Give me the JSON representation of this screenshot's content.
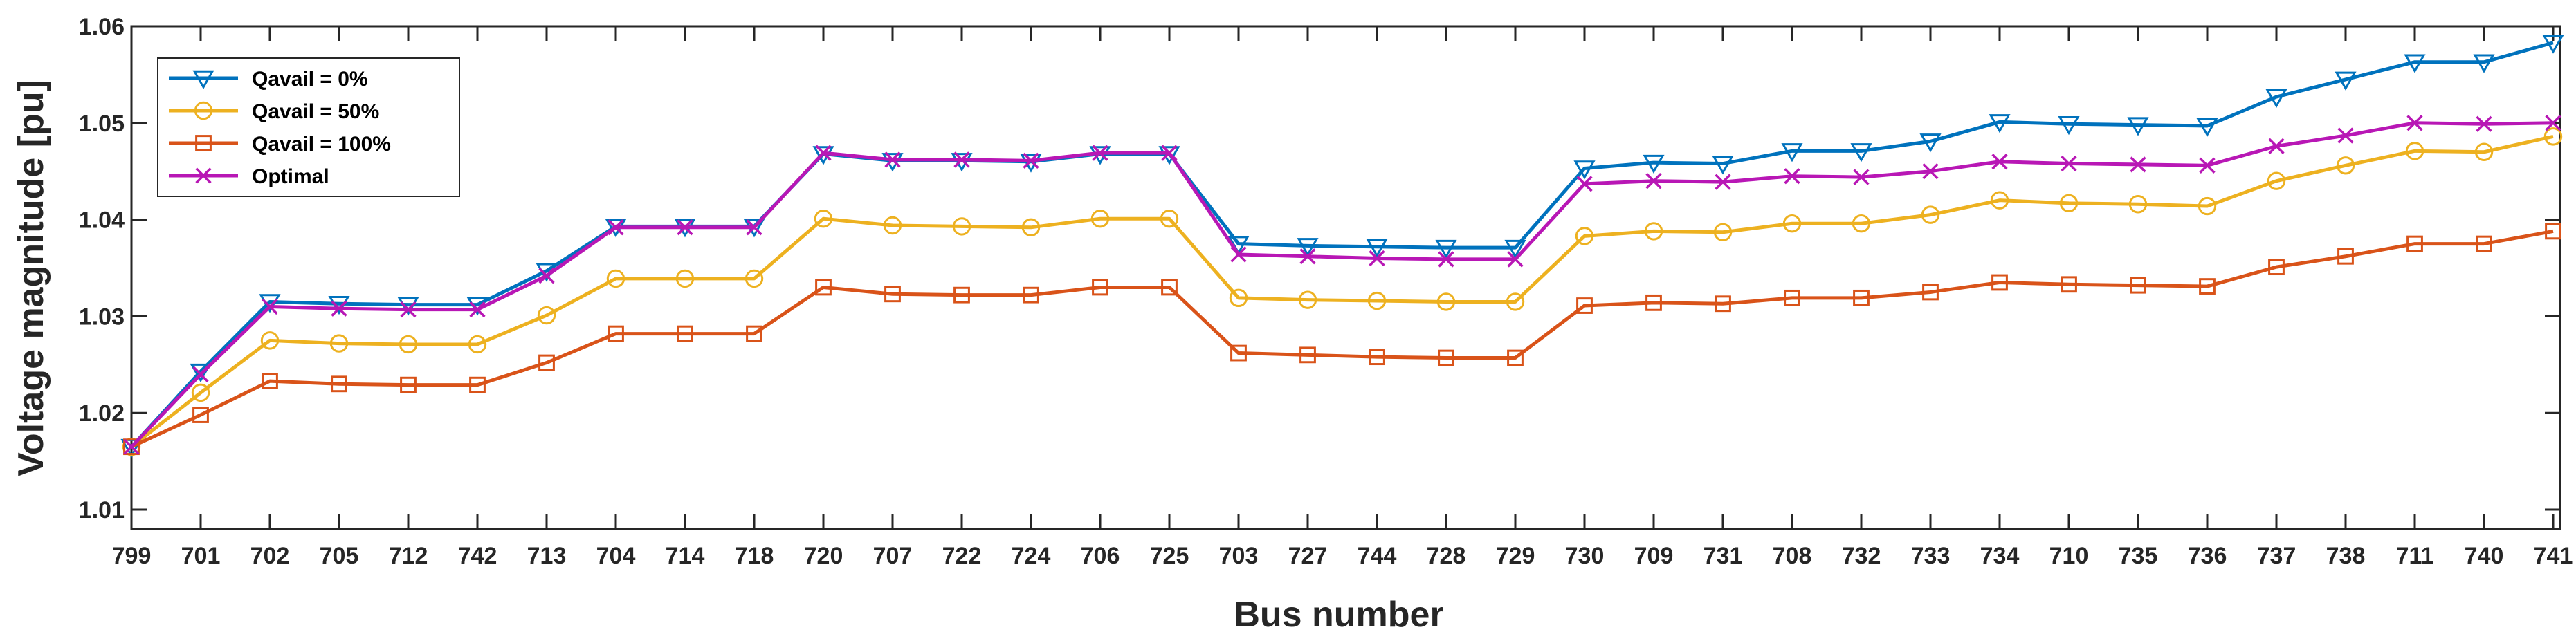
{
  "chart_data": {
    "type": "line",
    "xlabel": "Bus number",
    "ylabel": "Voltage magnitude [pu]",
    "ylim": [
      1.008,
      1.06
    ],
    "yticks": [
      1.01,
      1.02,
      1.03,
      1.04,
      1.05,
      1.06
    ],
    "ytick_labels": [
      "1.01",
      "1.02",
      "1.03",
      "1.04",
      "1.05",
      "1.06"
    ],
    "grid": false,
    "legend_position": "top-left",
    "categories": [
      "799",
      "701",
      "702",
      "705",
      "712",
      "742",
      "713",
      "704",
      "714",
      "718",
      "720",
      "707",
      "722",
      "724",
      "706",
      "725",
      "703",
      "727",
      "744",
      "728",
      "729",
      "730",
      "709",
      "731",
      "708",
      "732",
      "733",
      "734",
      "710",
      "735",
      "736",
      "737",
      "738",
      "711",
      "740",
      "741"
    ],
    "series": [
      {
        "name": "Qavail = 0%",
        "color": "#0072BD",
        "marker": "triangle-down",
        "values": [
          1.0165,
          1.0243,
          1.0315,
          1.0313,
          1.0312,
          1.0312,
          1.0347,
          1.0393,
          1.0393,
          1.0393,
          1.0468,
          1.0461,
          1.0461,
          1.046,
          1.0468,
          1.0468,
          1.0375,
          1.0373,
          1.0372,
          1.0371,
          1.0371,
          1.0453,
          1.0459,
          1.0458,
          1.0471,
          1.0471,
          1.0481,
          1.0501,
          1.0499,
          1.0498,
          1.0497,
          1.0527,
          1.0545,
          1.0563,
          1.0563,
          1.0583
        ]
      },
      {
        "name": "Qavail = 50%",
        "color": "#EDB120",
        "marker": "circle",
        "values": [
          1.0165,
          1.0221,
          1.0275,
          1.0272,
          1.0271,
          1.0271,
          1.0301,
          1.0339,
          1.0339,
          1.0339,
          1.0401,
          1.0394,
          1.0393,
          1.0392,
          1.0401,
          1.0401,
          1.0319,
          1.0317,
          1.0316,
          1.0315,
          1.0315,
          1.0383,
          1.0388,
          1.0387,
          1.0396,
          1.0396,
          1.0405,
          1.042,
          1.0417,
          1.0416,
          1.0414,
          1.044,
          1.0456,
          1.0471,
          1.047,
          1.0486
        ]
      },
      {
        "name": "Qavail = 100%",
        "color": "#D95319",
        "marker": "square",
        "values": [
          1.0165,
          1.0198,
          1.0233,
          1.023,
          1.0229,
          1.0229,
          1.0252,
          1.0282,
          1.0282,
          1.0282,
          1.033,
          1.0323,
          1.0322,
          1.0322,
          1.033,
          1.033,
          1.0262,
          1.026,
          1.0258,
          1.0257,
          1.0257,
          1.0311,
          1.0314,
          1.0313,
          1.0319,
          1.0319,
          1.0325,
          1.0335,
          1.0333,
          1.0332,
          1.0331,
          1.0351,
          1.0362,
          1.0375,
          1.0375,
          1.0388
        ]
      },
      {
        "name": "Optimal",
        "color": "#B817B5",
        "marker": "x",
        "values": [
          1.0165,
          1.024,
          1.031,
          1.0308,
          1.0307,
          1.0307,
          1.0342,
          1.0392,
          1.0392,
          1.0392,
          1.0469,
          1.0462,
          1.0462,
          1.0461,
          1.0469,
          1.0469,
          1.0364,
          1.0362,
          1.036,
          1.0359,
          1.0359,
          1.0437,
          1.044,
          1.0439,
          1.0445,
          1.0444,
          1.045,
          1.046,
          1.0458,
          1.0457,
          1.0456,
          1.0476,
          1.0487,
          1.05,
          1.0499,
          1.05
        ]
      }
    ]
  }
}
